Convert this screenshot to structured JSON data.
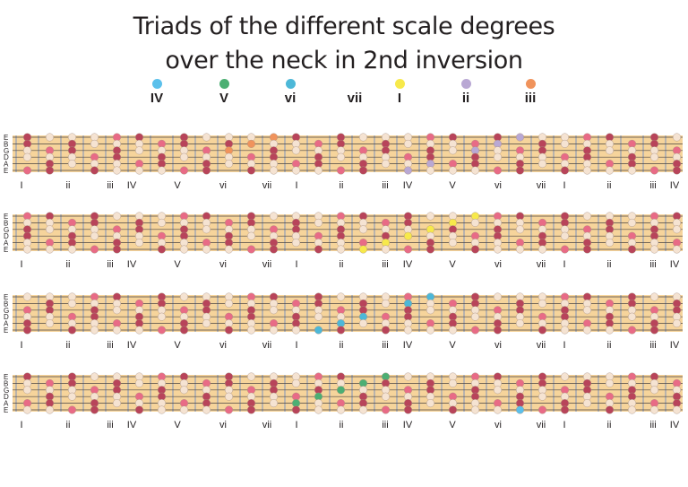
{
  "title": {
    "line1": "Triads of the different scale degrees",
    "line2": "over the neck in 2nd inversion"
  },
  "legend": [
    {
      "label": "IV",
      "color": "#5bc0eb"
    },
    {
      "label": "V",
      "color": "#4caf73"
    },
    {
      "label": "vi",
      "color": "#4db8d8"
    },
    {
      "label": "vii",
      "color": ""
    },
    {
      "label": "I",
      "color": "#f7e94b"
    },
    {
      "label": "ii",
      "color": "#b9a8d4"
    },
    {
      "label": "iii",
      "color": "#f0935c"
    }
  ],
  "string_names": [
    "E",
    "B",
    "G",
    "D",
    "A",
    "E"
  ],
  "fret_labels": [
    "I",
    "ii",
    "iii",
    "IV",
    "V",
    "vi",
    "vii",
    "I",
    "ii",
    "iii",
    "IV",
    "V",
    "vi",
    "vii",
    "I",
    "ii",
    "iii",
    "IV"
  ],
  "neck_count": 4,
  "colors": {
    "fretboard": "#f6d49b",
    "fretwire": "#b8b3ad",
    "string": "#4a4442",
    "scale_note": "#f5e3d2",
    "root_note": "#b8445a",
    "third_note": "#e86b86"
  }
}
